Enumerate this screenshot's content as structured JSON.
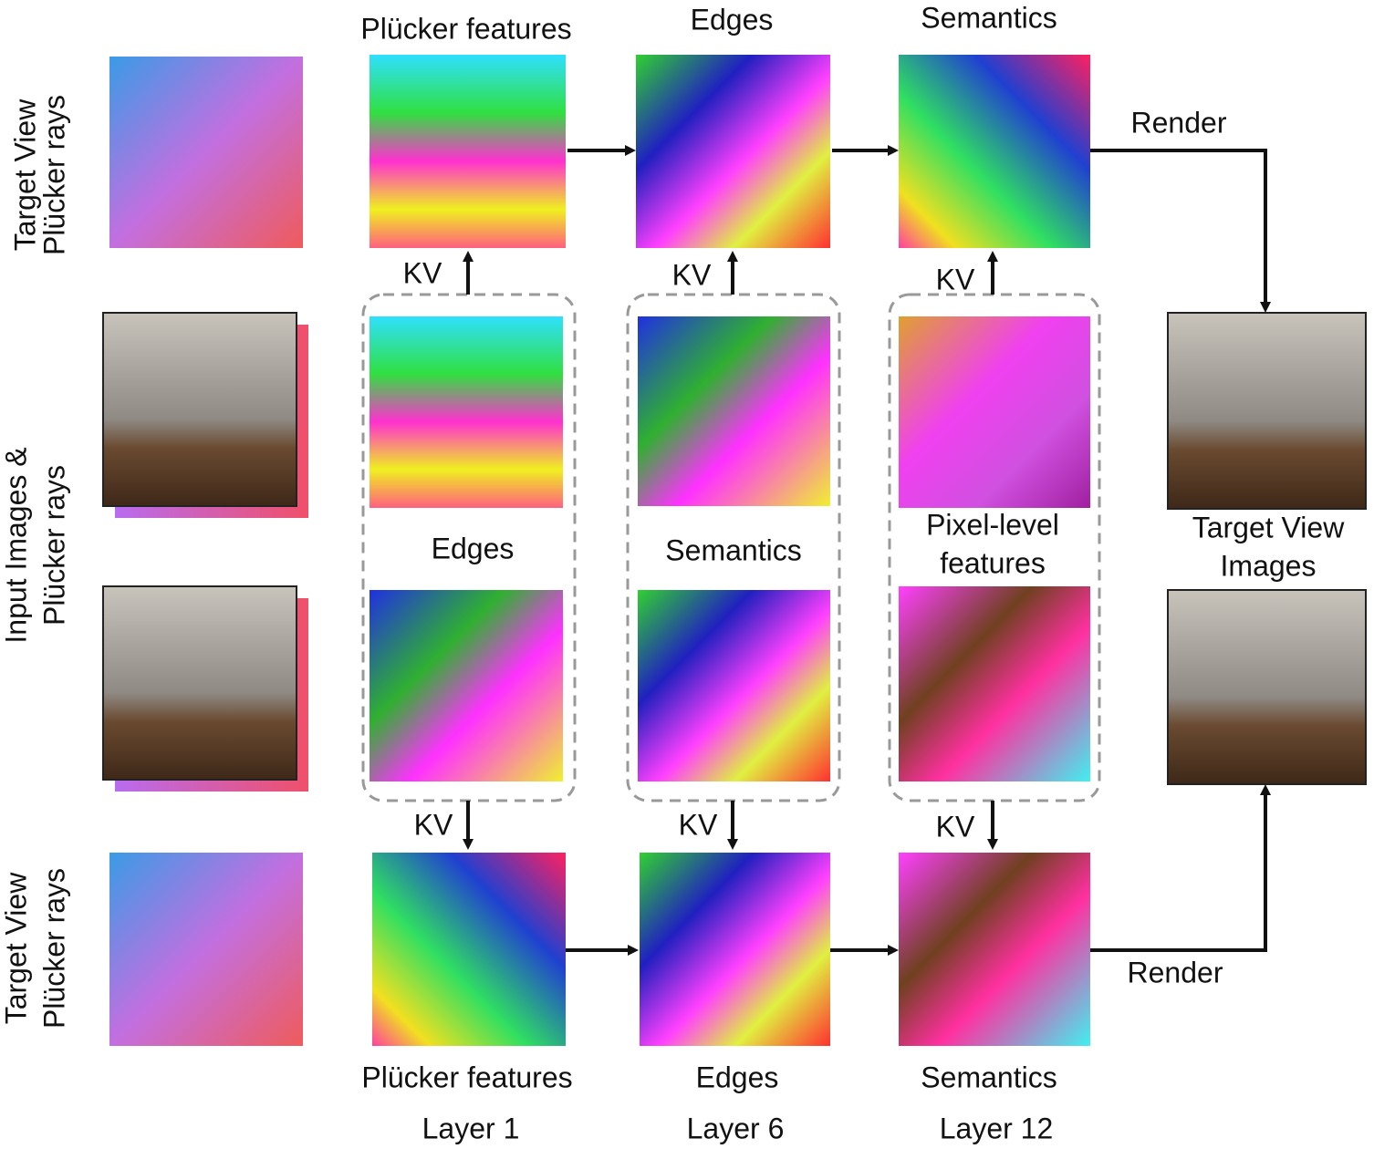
{
  "left_labels": [
    {
      "lines": [
        "Target View",
        "Plücker rays"
      ]
    },
    {
      "lines": [
        "Input Images &",
        "Plücker rays"
      ]
    },
    {
      "lines": [
        "Target View",
        "Plücker rays"
      ]
    }
  ],
  "top_labels": [
    "Plücker features",
    "Edges",
    "Semantics"
  ],
  "middle_labels": [
    {
      "lines": [
        "Edges"
      ]
    },
    {
      "lines": [
        "Semantics"
      ]
    },
    {
      "lines": [
        "Pixel-level",
        "features"
      ]
    }
  ],
  "bottom_labels": [
    "Plücker features",
    "Edges",
    "Semantics"
  ],
  "layers": [
    "Layer 1",
    "Layer 6",
    "Layer 12"
  ],
  "kv_labels": [
    "KV",
    "KV",
    "KV",
    "KV",
    "KV",
    "KV"
  ],
  "render_labels": [
    "Render",
    "Render"
  ],
  "output_label": [
    "Target View",
    "Images"
  ]
}
